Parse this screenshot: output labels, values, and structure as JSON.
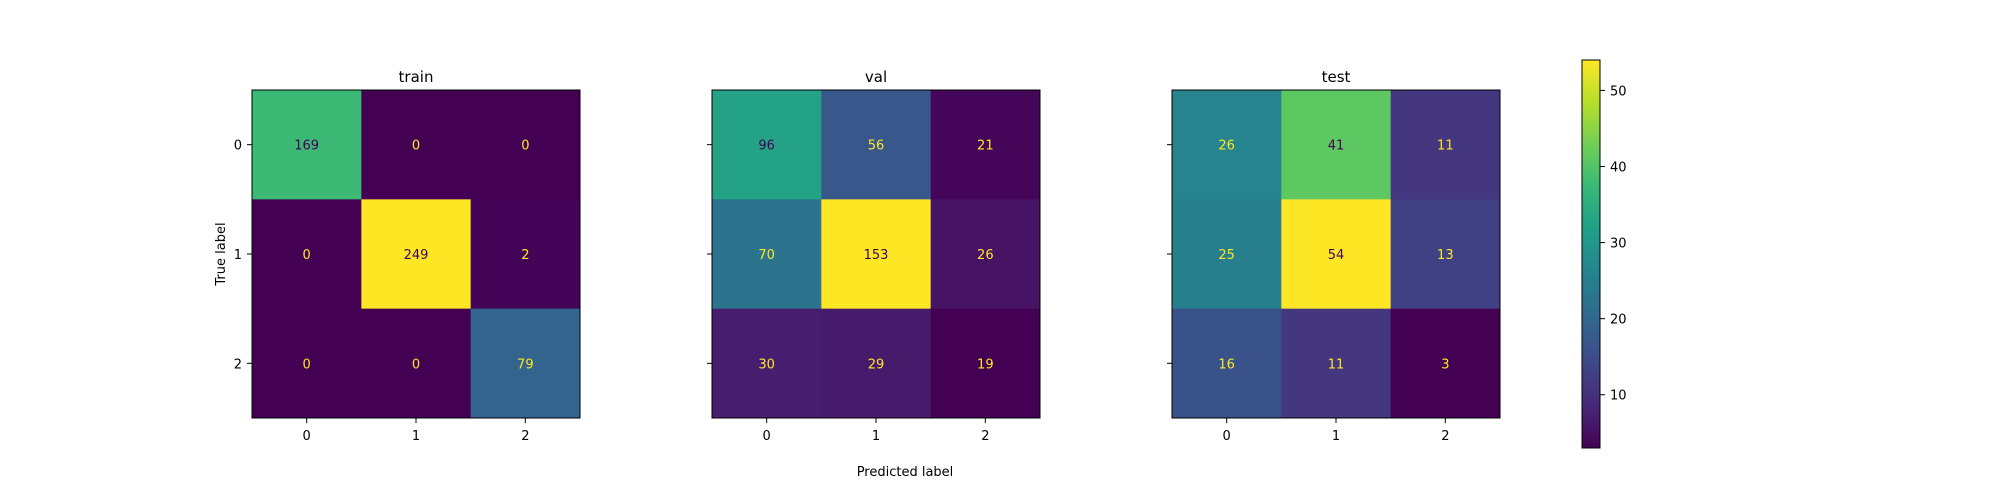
{
  "chart_data": {
    "type": "heatmap",
    "xlabel": "Predicted label",
    "ylabel": "True label",
    "class_labels": [
      "0",
      "1",
      "2"
    ],
    "panels": [
      {
        "title": "train",
        "matrix": [
          [
            169,
            0,
            0
          ],
          [
            0,
            249,
            2
          ],
          [
            0,
            0,
            79
          ]
        ]
      },
      {
        "title": "val",
        "matrix": [
          [
            96,
            56,
            21
          ],
          [
            70,
            153,
            26
          ],
          [
            30,
            29,
            19
          ]
        ]
      },
      {
        "title": "test",
        "matrix": [
          [
            26,
            41,
            11
          ],
          [
            25,
            54,
            13
          ],
          [
            16,
            11,
            3
          ]
        ]
      }
    ],
    "colormap": "viridis",
    "colorbar": {
      "range": [
        3,
        54
      ],
      "ticks": [
        10,
        20,
        30,
        40,
        50
      ]
    },
    "grid": false
  }
}
